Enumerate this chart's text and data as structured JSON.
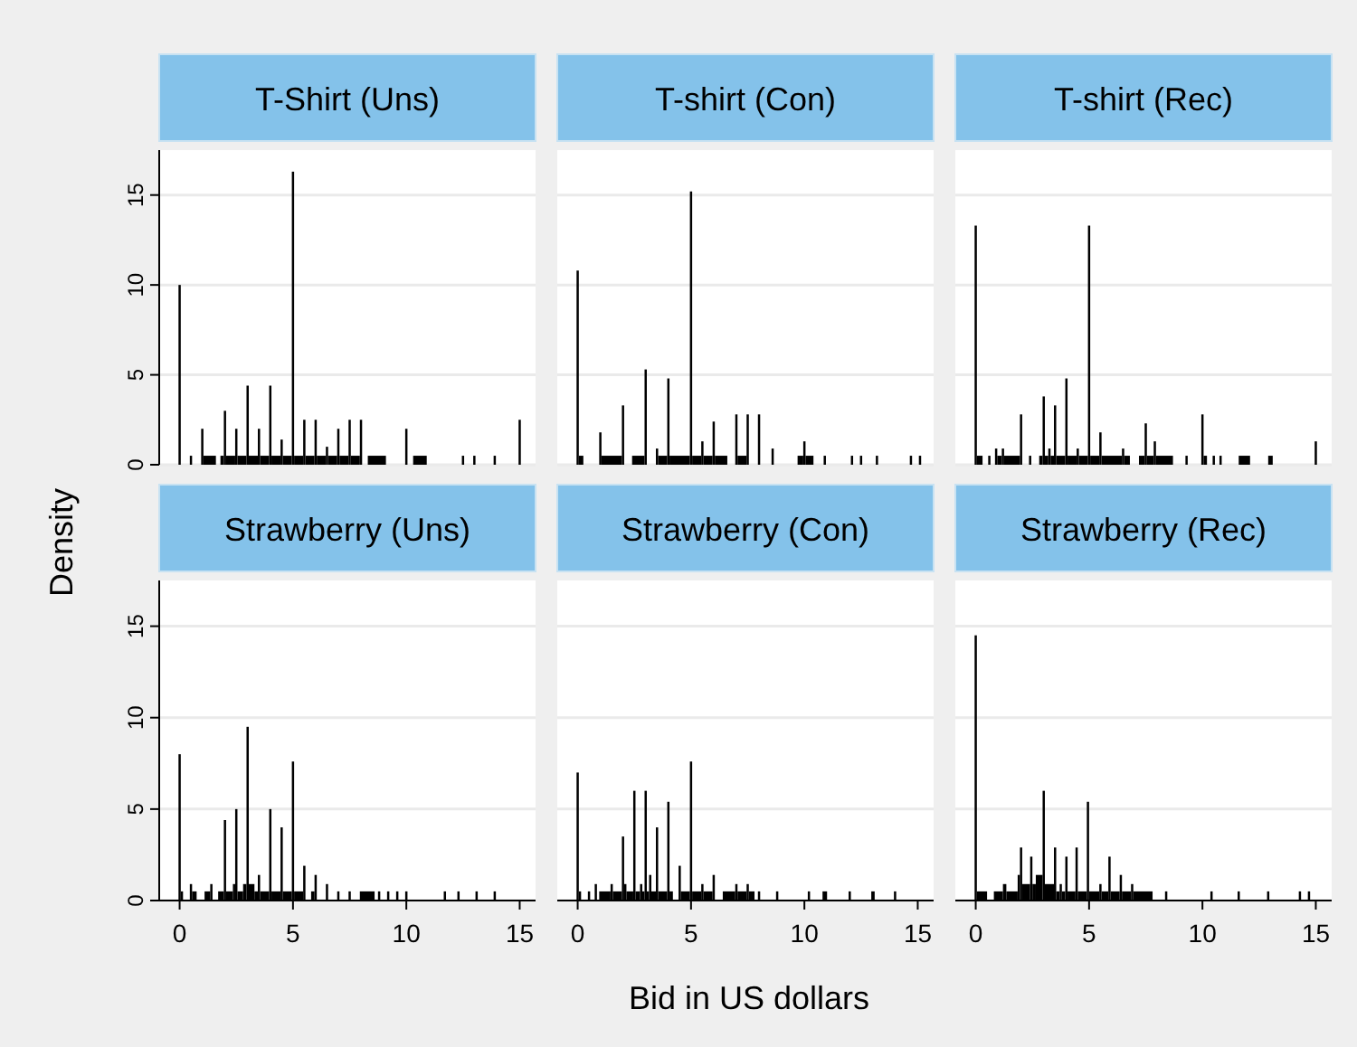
{
  "chart_data": [
    {
      "type": "histogram",
      "title": "T-Shirt (Uns)",
      "ylabel": "Density",
      "color": "#000000",
      "xlim": [
        -0.9,
        15.7
      ],
      "ylim": [
        0,
        17.5
      ],
      "yticks": [
        0,
        5,
        10,
        15
      ],
      "grid": "y",
      "tick_labels": "y",
      "bins": [
        -0.05,
        0.05,
        0.45,
        0.55,
        0.95,
        1.05,
        1.6,
        1.8,
        1.95,
        2.05,
        2.45,
        2.55,
        2.95,
        3.05,
        3.45,
        3.55,
        3.95,
        4.05,
        4.45,
        4.55,
        4.95,
        5.05,
        5.45,
        5.55,
        5.95,
        6.05,
        6.45,
        6.55,
        6.95,
        7.05,
        7.45,
        7.55,
        7.95,
        8.05,
        8.3,
        9.1,
        9.95,
        10.05,
        10.3,
        10.9,
        12.45,
        12.55,
        12.95,
        13.05,
        13.85,
        13.95,
        14.95,
        15.05
      ],
      "values": [
        10,
        0,
        0.5,
        0,
        2,
        0.5,
        0,
        0.5,
        3,
        0.5,
        2,
        0.5,
        4.4,
        0.5,
        2,
        0.5,
        4.4,
        0.5,
        1.4,
        0.5,
        16.3,
        0.5,
        2.5,
        0.5,
        2.5,
        0.5,
        1,
        0.5,
        2,
        0.5,
        2.5,
        0.5,
        2.5,
        0,
        0.5,
        0,
        2,
        0,
        0.5,
        0,
        0.5,
        0,
        0.5,
        0,
        0.5,
        0,
        2.5
      ]
    },
    {
      "type": "histogram",
      "title": "T-shirt (Con)",
      "color": "#000000",
      "xlim": [
        -0.9,
        15.7
      ],
      "ylim": [
        0,
        17.5
      ],
      "yticks": [
        0,
        5,
        10,
        15
      ],
      "grid": "y",
      "tick_labels": false,
      "bins": [
        -0.05,
        0.05,
        0.25,
        0.95,
        1.05,
        1.95,
        2.05,
        2.4,
        2.95,
        3.05,
        3.45,
        3.55,
        3.95,
        4.05,
        4.95,
        5.05,
        5.45,
        5.55,
        5.95,
        6.05,
        6.6,
        6.95,
        7.05,
        7.45,
        7.55,
        7.95,
        8.05,
        8.55,
        8.65,
        9.7,
        9.95,
        10.05,
        10.4,
        10.85,
        10.95,
        12.05,
        12.15,
        12.45,
        12.55,
        13.15,
        13.25,
        14.65,
        14.75,
        15.05,
        15.15
      ],
      "values": [
        10.8,
        0.5,
        0,
        1.8,
        0.5,
        3.3,
        0,
        0.5,
        5.3,
        0,
        0.9,
        0.5,
        4.8,
        0.5,
        15.2,
        0.5,
        1.3,
        0.5,
        2.4,
        0.5,
        0,
        2.8,
        0.5,
        2.8,
        0,
        2.8,
        0,
        0.9,
        0,
        0.5,
        1.3,
        0.5,
        0,
        0.5,
        0,
        0.5,
        0,
        0.5,
        0,
        0.5,
        0,
        0.5,
        0,
        0.5
      ]
    },
    {
      "type": "histogram",
      "title": "T-shirt (Rec)",
      "color": "#000000",
      "xlim": [
        -0.9,
        15.7
      ],
      "ylim": [
        0,
        17.5
      ],
      "yticks": [
        0,
        5,
        10,
        15
      ],
      "grid": "y",
      "tick_labels": false,
      "bins": [
        -0.05,
        0.05,
        0.3,
        0.55,
        0.65,
        0.85,
        0.95,
        1.15,
        1.25,
        1.95,
        2.05,
        2.35,
        2.45,
        2.8,
        2.95,
        3.05,
        3.2,
        3.3,
        3.45,
        3.55,
        3.95,
        4.05,
        4.45,
        4.55,
        4.95,
        5.05,
        5.45,
        5.55,
        6.45,
        6.55,
        6.8,
        7.2,
        7.45,
        7.55,
        7.85,
        7.95,
        8.7,
        9.25,
        9.35,
        9.95,
        10.05,
        10.2,
        10.45,
        10.55,
        10.75,
        10.85,
        11.6,
        12.1,
        12.9,
        13.1,
        14.95,
        15.05
      ],
      "values": [
        13.3,
        0.5,
        0,
        0.5,
        0,
        0.9,
        0.5,
        0.9,
        0.5,
        2.8,
        0,
        0.5,
        0,
        0.5,
        3.8,
        0.5,
        0.9,
        0.5,
        3.3,
        0.5,
        4.8,
        0.5,
        0.9,
        0.5,
        13.3,
        0.5,
        1.8,
        0.5,
        0.9,
        0.5,
        0,
        0.5,
        2.3,
        0.5,
        1.3,
        0.5,
        0,
        0.5,
        0,
        2.8,
        0.5,
        0,
        0.5,
        0,
        0.5,
        0,
        0.5,
        0,
        0.5,
        0,
        1.3
      ]
    },
    {
      "type": "histogram",
      "title": "Strawberry (Uns)",
      "color": "#000000",
      "xlim": [
        -0.9,
        15.7
      ],
      "ylim": [
        0,
        17.5
      ],
      "xticks": [
        0,
        5,
        10,
        15
      ],
      "yticks": [
        0,
        5,
        10,
        15
      ],
      "grid": "y",
      "bins": [
        -0.05,
        0.05,
        0.15,
        0.45,
        0.55,
        0.75,
        1.1,
        1.35,
        1.45,
        1.7,
        1.95,
        2.05,
        2.35,
        2.45,
        2.55,
        2.8,
        2.95,
        3.05,
        3.3,
        3.45,
        3.55,
        3.95,
        4.05,
        4.45,
        4.55,
        4.95,
        5.05,
        5.45,
        5.55,
        5.8,
        5.95,
        6.05,
        6.45,
        6.55,
        6.95,
        7.05,
        7.45,
        7.55,
        7.95,
        8.6,
        8.75,
        8.85,
        9.15,
        9.25,
        9.55,
        9.65,
        9.95,
        10.05,
        11.65,
        11.75,
        12.25,
        12.35,
        13.05,
        13.15,
        13.85,
        13.95
      ],
      "values": [
        8,
        0.5,
        0,
        0.9,
        0.5,
        0,
        0.5,
        0.9,
        0,
        0.5,
        4.4,
        0.5,
        0.9,
        5,
        0.5,
        0.9,
        9.5,
        0.9,
        0.5,
        1.4,
        0.5,
        5,
        0.5,
        4,
        0.5,
        7.6,
        0.5,
        1.9,
        0,
        0.5,
        1.4,
        0,
        0.9,
        0,
        0.5,
        0,
        0.5,
        0,
        0.5,
        0,
        0.5,
        0,
        0.5,
        0,
        0.5,
        0,
        0.5,
        0,
        0.5,
        0,
        0.5,
        0,
        0.5,
        0,
        0.5
      ]
    },
    {
      "type": "histogram",
      "title": "Strawberry (Con)",
      "xlabel": "Bid in US dollars",
      "color": "#000000",
      "xlim": [
        -0.9,
        15.7
      ],
      "ylim": [
        0,
        17.5
      ],
      "xticks": [
        0,
        5,
        10,
        15
      ],
      "yticks": [
        0,
        5,
        10,
        15
      ],
      "grid": "y",
      "tick_labels": "x",
      "bins": [
        -0.05,
        0.05,
        0.15,
        0.45,
        0.55,
        0.75,
        0.85,
        0.95,
        1.45,
        1.55,
        1.95,
        2.05,
        2.15,
        2.45,
        2.55,
        2.75,
        2.85,
        2.95,
        3.05,
        3.15,
        3.25,
        3.45,
        3.55,
        3.95,
        4.05,
        4.2,
        4.45,
        4.55,
        4.95,
        5.05,
        5.45,
        5.55,
        5.95,
        6.05,
        6.4,
        6.95,
        7.05,
        7.45,
        7.55,
        7.8,
        7.95,
        8.05,
        8.75,
        8.85,
        10.15,
        10.25,
        10.8,
        11.0,
        11.95,
        12.05,
        12.95,
        13.1,
        13.95,
        14.05
      ],
      "values": [
        7,
        0.5,
        0,
        0.5,
        0,
        0.9,
        0,
        0.5,
        0.9,
        0.5,
        3.5,
        0.9,
        0.5,
        6,
        0.5,
        0.9,
        0.5,
        6,
        0.5,
        1.4,
        0.5,
        4,
        0.5,
        5.4,
        0.5,
        0,
        1.9,
        0.5,
        7.6,
        0.5,
        0.9,
        0.5,
        1.4,
        0,
        0.5,
        0.9,
        0.5,
        0.9,
        0.5,
        0,
        0.5,
        0,
        0.5,
        0,
        0.5,
        0,
        0.5,
        0,
        0.5,
        0,
        0.5,
        0,
        0.5
      ]
    },
    {
      "type": "histogram",
      "title": "Strawberry (Rec)",
      "color": "#000000",
      "xlim": [
        -0.9,
        15.7
      ],
      "ylim": [
        0,
        17.5
      ],
      "xticks": [
        0,
        5,
        10,
        15
      ],
      "yticks": [
        0,
        5,
        10,
        15
      ],
      "grid": "y",
      "tick_labels": "x",
      "bins": [
        -0.05,
        0.05,
        0.5,
        0.8,
        1.2,
        1.35,
        1.85,
        1.95,
        2.05,
        2.4,
        2.5,
        2.65,
        2.95,
        3.05,
        3.45,
        3.55,
        3.7,
        3.8,
        3.95,
        4.05,
        4.4,
        4.5,
        4.9,
        5.0,
        5.45,
        5.55,
        5.85,
        5.95,
        6.35,
        6.45,
        6.85,
        6.95,
        7.8,
        8.35,
        8.45,
        10.35,
        10.45,
        11.55,
        11.65,
        12.85,
        12.95,
        14.25,
        14.35,
        14.65,
        14.75
      ],
      "values": [
        14.5,
        0.5,
        0,
        0.5,
        0.9,
        0.5,
        1.4,
        2.9,
        0.9,
        2.4,
        0.9,
        1.4,
        6,
        0.9,
        2.9,
        0.5,
        0.9,
        0.5,
        2.4,
        0.5,
        2.9,
        0.5,
        5.4,
        0.5,
        0.9,
        0.5,
        2.4,
        0.5,
        1.4,
        0.5,
        0.9,
        0.5,
        0,
        0.5,
        0,
        0.5,
        0,
        0.5,
        0,
        0.5,
        0,
        0.5,
        0,
        0.5
      ]
    }
  ]
}
